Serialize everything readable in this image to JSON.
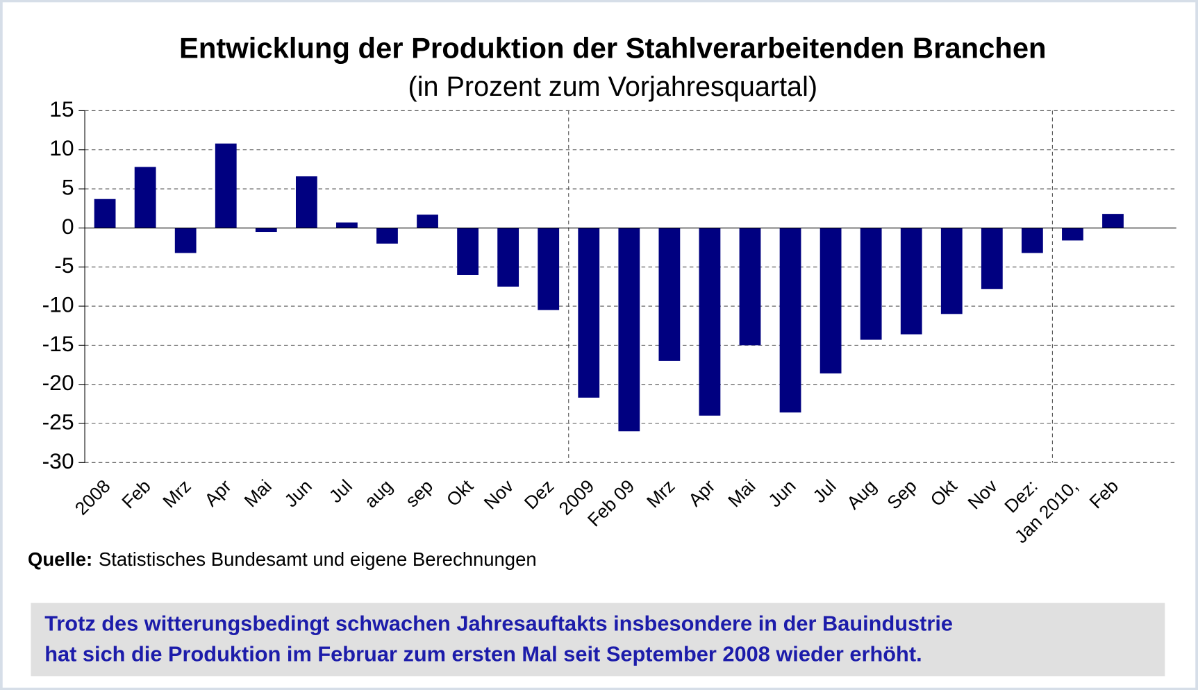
{
  "chart_data": {
    "type": "bar",
    "title": "Entwicklung der Produktion der Stahlverarbeitenden Branchen",
    "subtitle": "(in Prozent zum Vorjahresquartal)",
    "categories": [
      "2008",
      "Feb",
      "Mrz",
      "Apr",
      "Mai",
      "Jun",
      "Jul",
      "aug",
      "sep",
      "Okt",
      "Nov",
      "Dez",
      "2009",
      "Feb 09",
      "Mrz",
      "Apr",
      "Mai",
      "Jun",
      "Jul",
      "Aug",
      "Sep",
      "Okt",
      "Nov",
      "Dez:",
      "Jan 2010,",
      "Feb"
    ],
    "values": [
      3.7,
      7.8,
      -3.2,
      10.8,
      -0.5,
      6.6,
      0.7,
      -2,
      1.7,
      -6,
      -7.5,
      -10.5,
      -21.7,
      -26,
      -17,
      -24,
      -15,
      -23.6,
      -18.6,
      -14.3,
      -13.6,
      -11,
      -7.8,
      -3.2,
      -1.6,
      1.8
    ],
    "color": "#000080",
    "ylim": [
      -30,
      15
    ],
    "yticks": [
      -30,
      -25,
      -20,
      -15,
      -10,
      -5,
      0,
      5,
      10,
      15
    ],
    "grid": true,
    "source_label": "Quelle:",
    "source_text": "Statistisches Bundesamt und eigene Berechnungen",
    "note": [
      "Trotz des witterungsbedingt schwachen Jahresauftakts insbesondere in der Bauindustrie",
      "hat sich die Produktion im Februar zum ersten Mal seit September 2008 wieder erhöht."
    ]
  }
}
